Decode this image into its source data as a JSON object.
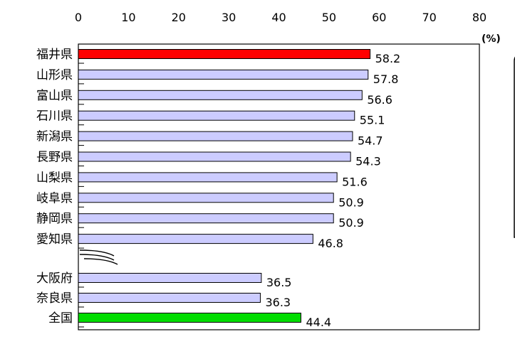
{
  "chart_data": {
    "type": "bar",
    "orientation": "horizontal",
    "xlim": [
      0,
      80
    ],
    "x_ticks": [
      "0",
      "10",
      "20",
      "30",
      "40",
      "50",
      "60",
      "70",
      "80"
    ],
    "unit": "(%)",
    "axis_break_after": "愛知県",
    "grid": false,
    "categories": [
      "福井県",
      "山形県",
      "富山県",
      "石川県",
      "新潟県",
      "長野県",
      "山梨県",
      "岐阜県",
      "静岡県",
      "愛知県",
      "大阪府",
      "奈良県",
      "全国"
    ],
    "values": [
      58.2,
      57.8,
      56.6,
      55.1,
      54.7,
      54.3,
      51.6,
      50.9,
      50.9,
      46.8,
      36.5,
      36.3,
      44.4
    ],
    "value_labels": [
      "58.2",
      "57.8",
      "56.6",
      "55.1",
      "54.7",
      "54.3",
      "51.6",
      "50.9",
      "50.9",
      "46.8",
      "36.5",
      "36.3",
      "44.4"
    ],
    "bar_colors": [
      "#ff0000",
      "#ccccff",
      "#ccccff",
      "#ccccff",
      "#ccccff",
      "#ccccff",
      "#ccccff",
      "#ccccff",
      "#ccccff",
      "#ccccff",
      "#ccccff",
      "#ccccff",
      "#00dd00"
    ]
  }
}
